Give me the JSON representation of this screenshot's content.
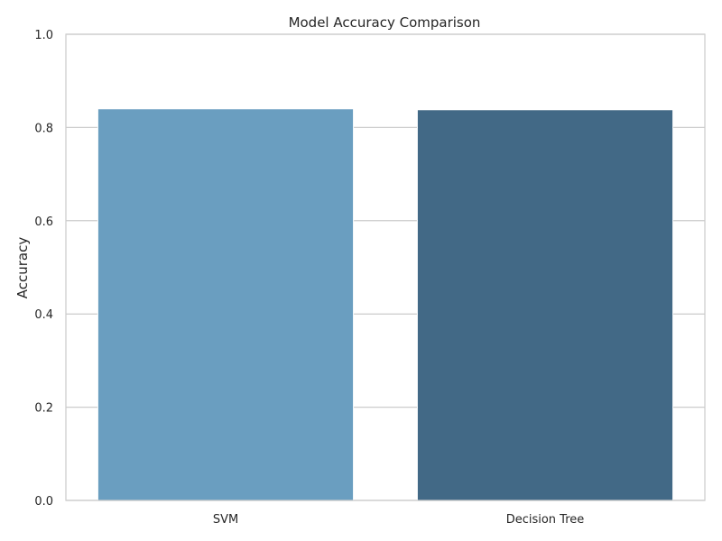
{
  "chart_data": {
    "type": "bar",
    "title": "Model Accuracy Comparison",
    "xlabel": "",
    "ylabel": "Accuracy",
    "categories": [
      "SVM",
      "Decision Tree"
    ],
    "values": [
      0.84,
      0.838
    ],
    "colors": [
      "#6a9ec0",
      "#426986"
    ],
    "ylim": [
      0,
      1.0
    ],
    "yticks": [
      "0.0",
      "0.2",
      "0.4",
      "0.6",
      "0.8",
      "1.0"
    ],
    "grid": true,
    "style": {
      "gridline_color": "#cccccc",
      "frame_color": "#cccccc"
    }
  }
}
